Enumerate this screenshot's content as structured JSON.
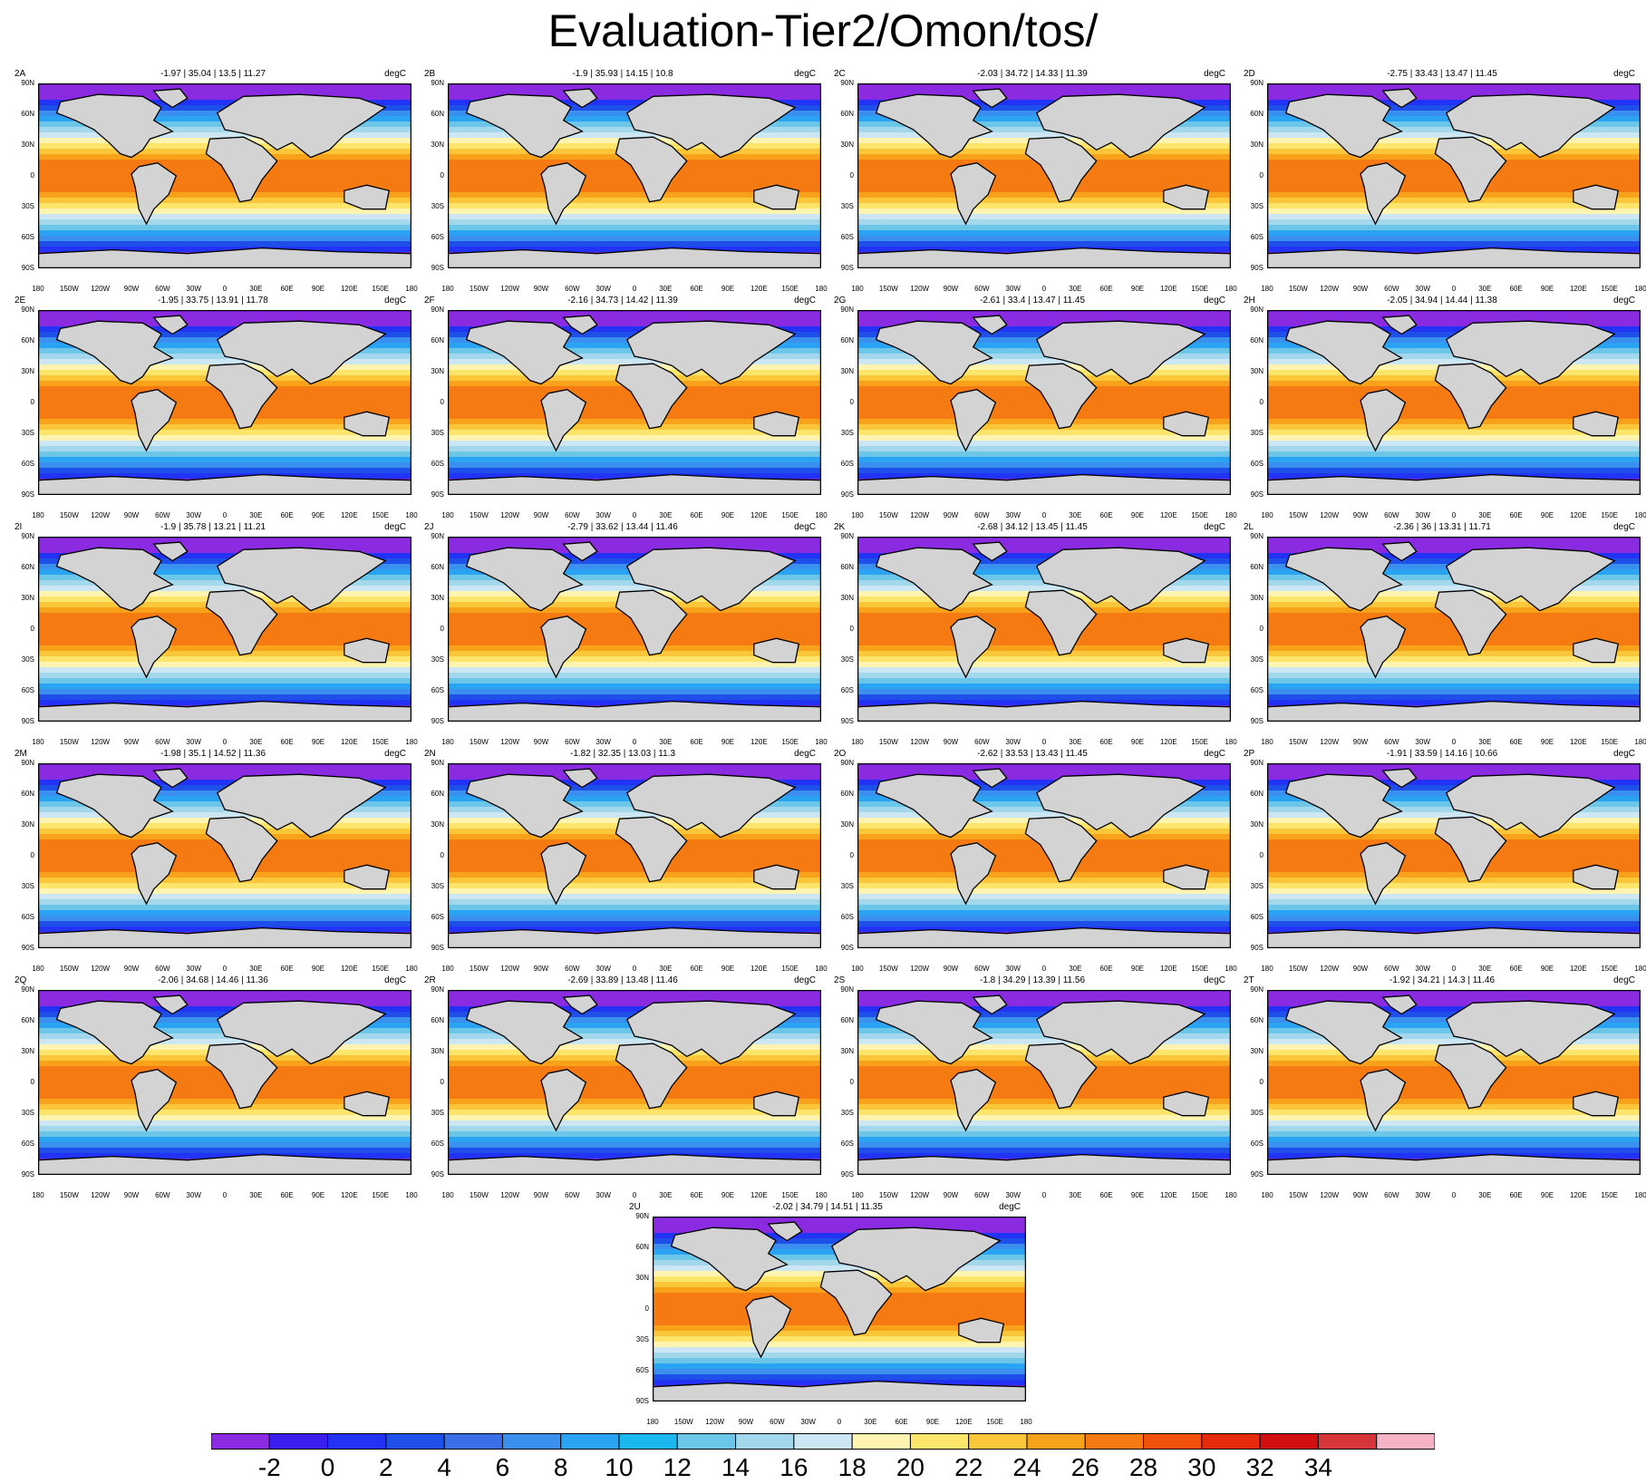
{
  "title": "Evaluation-Tier2/Omon/tos/",
  "units": "degC",
  "lat_labels": [
    "90N",
    "60N",
    "30N",
    "0",
    "30S",
    "60S",
    "90S"
  ],
  "lon_labels": [
    "180",
    "150W",
    "120W",
    "90W",
    "60W",
    "30W",
    "0",
    "30E",
    "60E",
    "90E",
    "120E",
    "150E",
    "180"
  ],
  "panels": [
    {
      "label": "2A",
      "stats": "-1.97 | 35.04 | 13.5 | 11.27"
    },
    {
      "label": "2B",
      "stats": "-1.9 | 35.93 | 14.15 | 10.8"
    },
    {
      "label": "2C",
      "stats": "-2.03 | 34.72 | 14.33 | 11.39"
    },
    {
      "label": "2D",
      "stats": "-2.75 | 33.43 | 13.47 | 11.45"
    },
    {
      "label": "2E",
      "stats": "-1.95 | 33.75 | 13.91 | 11.78"
    },
    {
      "label": "2F",
      "stats": "-2.16 | 34.73 | 14.42 | 11.39"
    },
    {
      "label": "2G",
      "stats": "-2.61 | 33.4 | 13.47 | 11.45"
    },
    {
      "label": "2H",
      "stats": "-2.05 | 34.94 | 14.44 | 11.38"
    },
    {
      "label": "2I",
      "stats": "-1.9 | 35.78 | 13.21 | 11.21"
    },
    {
      "label": "2J",
      "stats": "-2.79 | 33.62 | 13.44 | 11.46"
    },
    {
      "label": "2K",
      "stats": "-2.68 | 34.12 | 13.45 | 11.45"
    },
    {
      "label": "2L",
      "stats": "-2.36 | 36 | 13.31 | 11.71"
    },
    {
      "label": "2M",
      "stats": "-1.98 | 35.1 | 14.52 | 11.36"
    },
    {
      "label": "2N",
      "stats": "-1.82 | 32.35 | 13.03 | 11.3"
    },
    {
      "label": "2O",
      "stats": "-2.62 | 33.53 | 13.43 | 11.45"
    },
    {
      "label": "2P",
      "stats": "-1.91 | 33.59 | 14.16 | 10.66"
    },
    {
      "label": "2Q",
      "stats": "-2.06 | 34.68 | 14.46 | 11.36"
    },
    {
      "label": "2R",
      "stats": "-2.69 | 33.89 | 13.48 | 11.46"
    },
    {
      "label": "2S",
      "stats": "-1.8 | 34.29 | 13.39 | 11.56"
    },
    {
      "label": "2T",
      "stats": "-1.92 | 34.21 | 14.3 | 11.46"
    },
    {
      "label": "2U",
      "stats": "-2.02 | 34.79 | 14.51 | 11.35"
    }
  ],
  "colorbar": {
    "tick_labels": [
      "-2",
      "0",
      "2",
      "4",
      "6",
      "8",
      "10",
      "12",
      "14",
      "16",
      "18",
      "20",
      "22",
      "24",
      "26",
      "28",
      "30",
      "32",
      "34"
    ],
    "colors": [
      "#8a2be2",
      "#3a1ef0",
      "#2233f5",
      "#1e4fe8",
      "#3a6ee6",
      "#3a8fef",
      "#29a3f2",
      "#1ab8ef",
      "#6cc6e8",
      "#a2d7ec",
      "#cde6f4",
      "#fff5b0",
      "#fde46a",
      "#fbc73a",
      "#f8a21c",
      "#f57a12",
      "#f1500d",
      "#e62a0c",
      "#d10f10",
      "#d6363a",
      "#f7b3c6"
    ]
  }
}
